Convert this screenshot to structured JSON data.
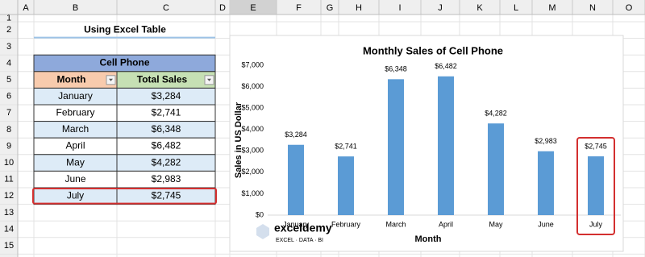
{
  "sheet": {
    "columns": [
      "A",
      "B",
      "C",
      "D",
      "E",
      "F",
      "G",
      "H",
      "I",
      "J",
      "K",
      "L",
      "M",
      "N",
      "O"
    ],
    "rows": [
      "1",
      "2",
      "3",
      "4",
      "5",
      "6",
      "7",
      "8",
      "9",
      "10",
      "11",
      "12",
      "13",
      "14",
      "15"
    ],
    "heading": "Using Excel Table"
  },
  "table": {
    "title": "Cell Phone",
    "header": [
      "Month",
      "Total Sales"
    ],
    "rows": [
      [
        "January",
        "$3,284"
      ],
      [
        "February",
        "$2,741"
      ],
      [
        "March",
        "$6,348"
      ],
      [
        "April",
        "$6,482"
      ],
      [
        "May",
        "$4,282"
      ],
      [
        "June",
        "$2,983"
      ],
      [
        "July",
        "$2,745"
      ]
    ]
  },
  "chart_data": {
    "type": "bar",
    "title": "Monthly Sales of Cell Phone",
    "x_label": "Month",
    "y_label": "Sales in US Dollar",
    "categories": [
      "January",
      "February",
      "March",
      "April",
      "May",
      "June",
      "July"
    ],
    "values": [
      3284,
      2741,
      6348,
      6482,
      4282,
      2983,
      2745
    ],
    "value_labels": [
      "$3,284",
      "$2,741",
      "$6,348",
      "$6,482",
      "$4,282",
      "$2,983",
      "$2,745"
    ],
    "color": "#5b9bd5",
    "ylim": [
      0,
      7000
    ],
    "yticks": [
      {
        "value": 0,
        "label": "$0"
      },
      {
        "value": 1000,
        "label": "$1,000"
      },
      {
        "value": 2000,
        "label": "$2,000"
      },
      {
        "value": 3000,
        "label": "$3,000"
      },
      {
        "value": 4000,
        "label": "$4,000"
      },
      {
        "value": 5000,
        "label": "$5,000"
      },
      {
        "value": 6000,
        "label": "$6,000"
      },
      {
        "value": 7000,
        "label": "$7,000"
      }
    ]
  },
  "watermark": {
    "name": "exceldemy",
    "tagline": "EXCEL · DATA · BI"
  }
}
